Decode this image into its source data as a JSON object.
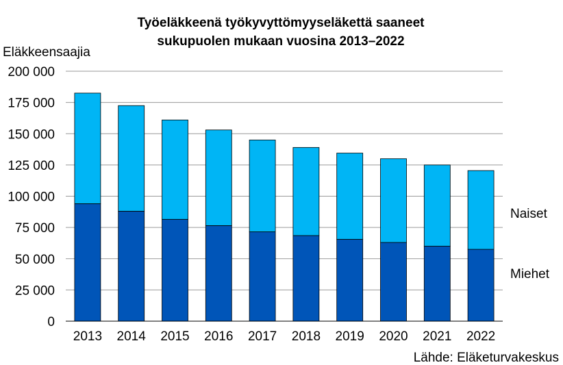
{
  "chart_data": {
    "type": "bar",
    "stacked": true,
    "title_lines": [
      "Työeläkkeenä työkyvyttömyyseläkettä saaneet",
      "sukupuolen mukaan vuosina 2013–2022"
    ],
    "ylabel": "Eläkkeensaajia",
    "source": "Lähde: Eläketurvakeskus",
    "ylim": [
      0,
      200000
    ],
    "ytick_values": [
      0,
      25000,
      50000,
      75000,
      100000,
      125000,
      150000,
      175000,
      200000
    ],
    "ytick_labels": [
      "0",
      "25 000",
      "50 000",
      "75 000",
      "100 000",
      "125 000",
      "150 000",
      "175 000",
      "200 000"
    ],
    "grid": true,
    "legend_placement": "right",
    "categories": [
      "2013",
      "2014",
      "2015",
      "2016",
      "2017",
      "2018",
      "2019",
      "2020",
      "2021",
      "2022"
    ],
    "series": [
      {
        "name": "Miehet",
        "color": "#0055b8",
        "values": [
          94000,
          88000,
          81500,
          76500,
          71500,
          68500,
          65500,
          63000,
          60000,
          57500
        ]
      },
      {
        "name": "Naiset",
        "color": "#00b5f5",
        "values": [
          88500,
          84500,
          79500,
          76500,
          73500,
          70500,
          69000,
          67000,
          65000,
          63000
        ]
      }
    ]
  }
}
